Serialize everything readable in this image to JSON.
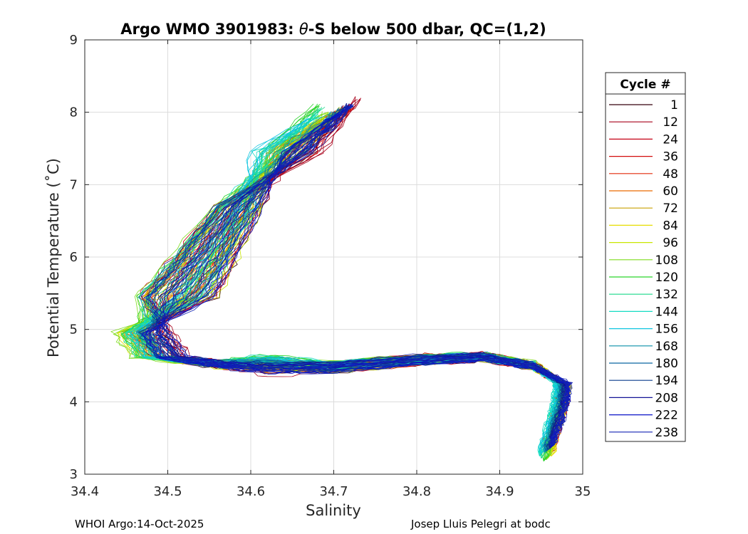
{
  "chart_data": {
    "type": "line",
    "title_pre": "Argo WMO 3901983: ",
    "title_symbol": "θ",
    "title_post": "-S below 500 dbar,  QC=(1,2)",
    "xlabel": "Salinity",
    "ylabel": "Potential Temperature (˚C)",
    "xlim": [
      34.4,
      35
    ],
    "ylim": [
      3,
      9
    ],
    "xticks": [
      "34.4",
      "34.5",
      "34.6",
      "34.7",
      "34.8",
      "34.9",
      "35"
    ],
    "yticks": [
      "3",
      "4",
      "5",
      "6",
      "7",
      "8",
      "9"
    ],
    "grid": true,
    "legend_title": "Cycle #",
    "legend_position": "outside-right",
    "series": [
      {
        "name": "1",
        "color": "#36000c",
        "s": 34.72,
        "t": 8.08,
        "mins": 34.48,
        "dip": 4.38,
        "maxs": 34.982,
        "tend": 3.3
      },
      {
        "name": "12",
        "color": "#a8001a",
        "s": 34.73,
        "t": 8.2,
        "mins": 34.49,
        "dip": 4.3,
        "maxs": 34.978,
        "tend": 3.35
      },
      {
        "name": "24",
        "color": "#c50014",
        "s": 34.715,
        "t": 8.1,
        "mins": 34.48,
        "dip": 4.42,
        "maxs": 34.984,
        "tend": 3.3
      },
      {
        "name": "36",
        "color": "#d30d0d",
        "s": 34.72,
        "t": 8.05,
        "mins": 34.475,
        "dip": 4.45,
        "maxs": 34.98,
        "tend": 3.32
      },
      {
        "name": "48",
        "color": "#e32a0a",
        "s": 34.7,
        "t": 8.0,
        "mins": 34.47,
        "dip": 4.4,
        "maxs": 34.975,
        "tend": 3.38
      },
      {
        "name": "60",
        "color": "#eb6b00",
        "s": 34.69,
        "t": 7.9,
        "mins": 34.465,
        "dip": 4.35,
        "maxs": 34.978,
        "tend": 3.3
      },
      {
        "name": "72",
        "color": "#c9a000",
        "s": 34.7,
        "t": 7.95,
        "mins": 34.46,
        "dip": 4.38,
        "maxs": 34.982,
        "tend": 3.28
      },
      {
        "name": "84",
        "color": "#e6dc00",
        "s": 34.71,
        "t": 8.05,
        "mins": 34.455,
        "dip": 4.4,
        "maxs": 34.984,
        "tend": 3.25
      },
      {
        "name": "96",
        "color": "#c8e600",
        "s": 34.695,
        "t": 7.98,
        "mins": 34.46,
        "dip": 4.42,
        "maxs": 34.98,
        "tend": 3.22
      },
      {
        "name": "108",
        "color": "#7fdc1e",
        "s": 34.69,
        "t": 8.0,
        "mins": 34.45,
        "dip": 4.45,
        "maxs": 34.978,
        "tend": 3.2
      },
      {
        "name": "120",
        "color": "#2bd32b",
        "s": 34.68,
        "t": 8.1,
        "mins": 34.452,
        "dip": 4.5,
        "maxs": 34.975,
        "tend": 3.18
      },
      {
        "name": "132",
        "color": "#1ad98a",
        "s": 34.685,
        "t": 8.05,
        "mins": 34.455,
        "dip": 4.48,
        "maxs": 34.972,
        "tend": 3.22
      },
      {
        "name": "144",
        "color": "#14dcc3",
        "s": 34.68,
        "t": 7.95,
        "mins": 34.46,
        "dip": 4.5,
        "maxs": 34.97,
        "tend": 3.25
      },
      {
        "name": "156",
        "color": "#10c6e0",
        "s": 34.67,
        "t": 7.9,
        "mins": 34.465,
        "dip": 4.48,
        "maxs": 34.972,
        "tend": 3.28
      },
      {
        "name": "168",
        "color": "#0a8fa8",
        "s": 34.7,
        "t": 8.0,
        "mins": 34.47,
        "dip": 4.45,
        "maxs": 34.976,
        "tend": 3.3
      },
      {
        "name": "180",
        "color": "#0a66a0",
        "s": 34.71,
        "t": 8.05,
        "mins": 34.475,
        "dip": 4.42,
        "maxs": 34.978,
        "tend": 3.32
      },
      {
        "name": "194",
        "color": "#0a3c8c",
        "s": 34.715,
        "t": 8.08,
        "mins": 34.48,
        "dip": 4.4,
        "maxs": 34.98,
        "tend": 3.34
      },
      {
        "name": "208",
        "color": "#141496",
        "s": 34.72,
        "t": 8.1,
        "mins": 34.485,
        "dip": 4.38,
        "maxs": 34.982,
        "tend": 3.36
      },
      {
        "name": "222",
        "color": "#0a14c8",
        "s": 34.718,
        "t": 8.08,
        "mins": 34.488,
        "dip": 4.36,
        "maxs": 34.984,
        "tend": 3.38
      },
      {
        "name": "238",
        "color": "#1423b4",
        "s": 34.72,
        "t": 8.1,
        "mins": 34.49,
        "dip": 4.35,
        "maxs": 34.985,
        "tend": 3.4
      }
    ]
  },
  "footer": {
    "left": "WHOI Argo:14-Oct-2025",
    "right": "Josep Lluis Pelegri at bodc"
  }
}
